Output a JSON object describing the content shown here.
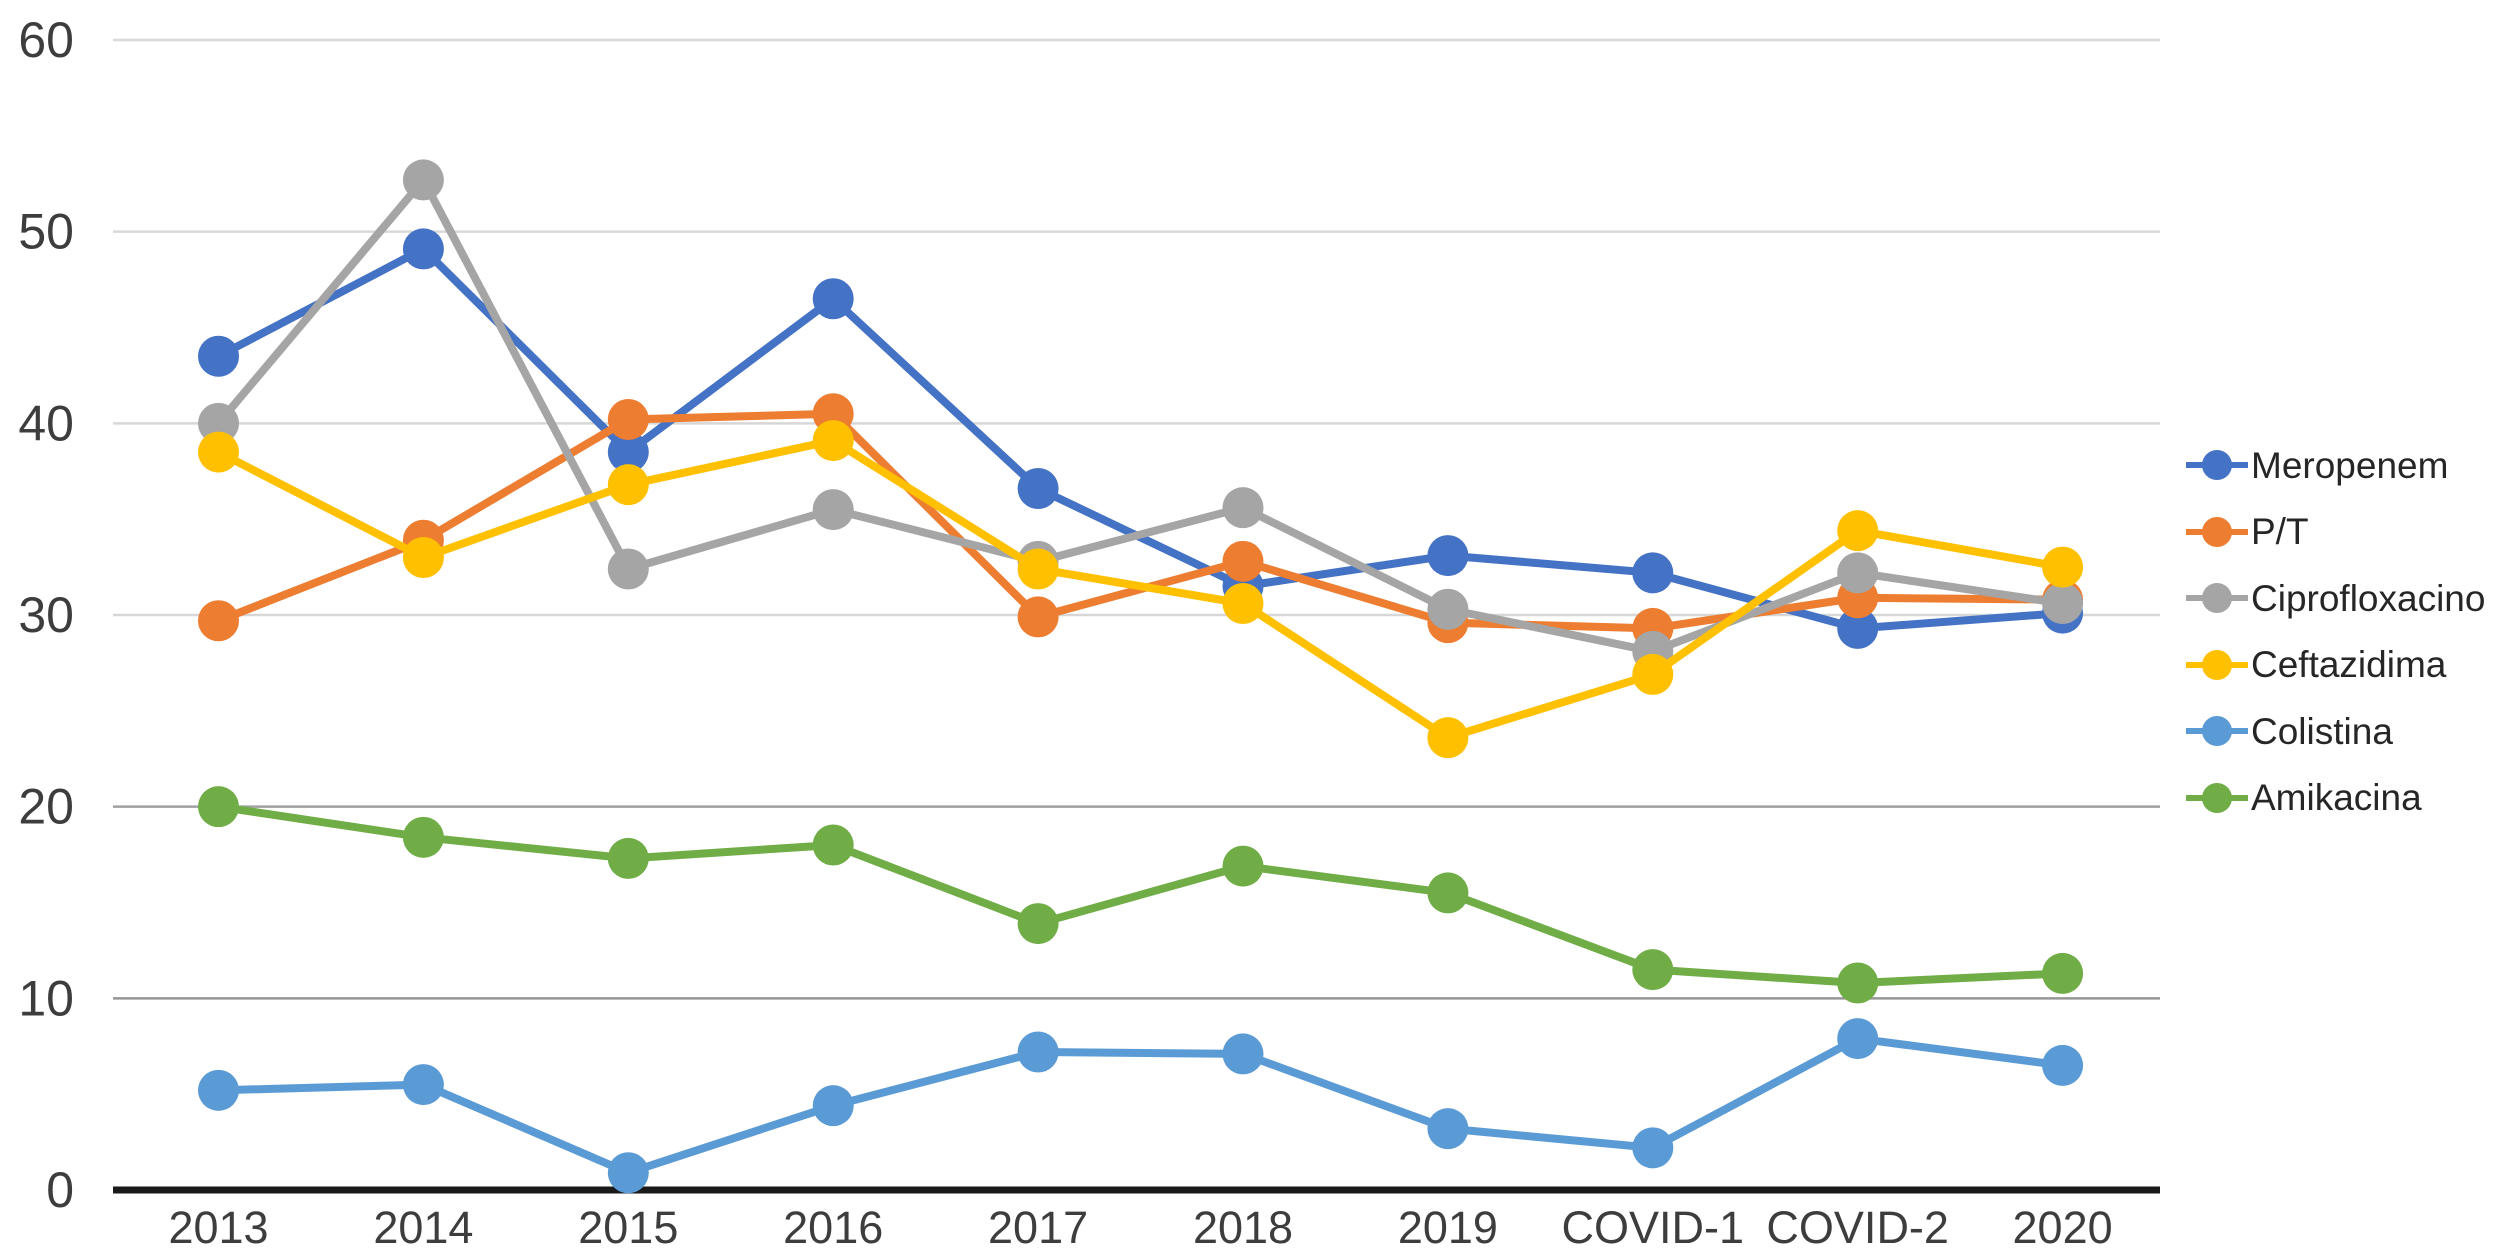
{
  "chart_data": {
    "type": "line",
    "title": "",
    "xlabel": "",
    "ylabel": "",
    "categories": [
      "2013",
      "2014",
      "2015",
      "2016",
      "2017",
      "2018",
      "2019",
      "COVID-1",
      "COVID-2",
      "2020"
    ],
    "y_ticks": [
      "0",
      "10",
      "20",
      "30",
      "40",
      "50",
      "60"
    ],
    "ylim": [
      0,
      60
    ],
    "grid": "horizontal",
    "legend_position": "right",
    "background_color": "#ffffff",
    "axis_line_color": "#1a1a1a",
    "tick_label_color": "#3d3d3d",
    "gridline_colors": {
      "10": "#969696",
      "20": "#a0a0a0",
      "30": "#d7d7d7",
      "40": "#d7d7d7",
      "50": "#d9d9d9",
      "60": "#d9d9d9"
    },
    "series": [
      {
        "name": "Meropenem",
        "color": "#4472C4",
        "values": [
          43.5,
          49.1,
          38.5,
          46.5,
          36.6,
          31.5,
          33.1,
          32.2,
          29.3,
          30.1
        ]
      },
      {
        "name": "P/T",
        "color": "#ED7D31",
        "values": [
          29.7,
          33.9,
          40.2,
          40.5,
          29.9,
          32.8,
          29.6,
          29.3,
          30.9,
          30.8
        ]
      },
      {
        "name": "Ciprofloxacino",
        "color": "#A5A5A5",
        "values": [
          40.0,
          52.7,
          32.4,
          35.5,
          32.8,
          35.6,
          30.3,
          28.1,
          32.2,
          30.6
        ]
      },
      {
        "name": "Ceftazidima",
        "color": "#FFC000",
        "values": [
          38.5,
          33.0,
          36.8,
          39.1,
          32.4,
          30.6,
          23.6,
          26.9,
          34.4,
          32.5
        ]
      },
      {
        "name": "Colistina",
        "color": "#5B9BD5",
        "values": [
          5.2,
          5.5,
          0.9,
          4.4,
          7.2,
          7.1,
          3.2,
          2.2,
          7.9,
          6.5
        ]
      },
      {
        "name": "Amikacina",
        "color": "#70AD47",
        "values": [
          20.0,
          18.4,
          17.3,
          18.0,
          13.9,
          16.9,
          15.5,
          11.5,
          10.8,
          11.3
        ]
      }
    ]
  }
}
